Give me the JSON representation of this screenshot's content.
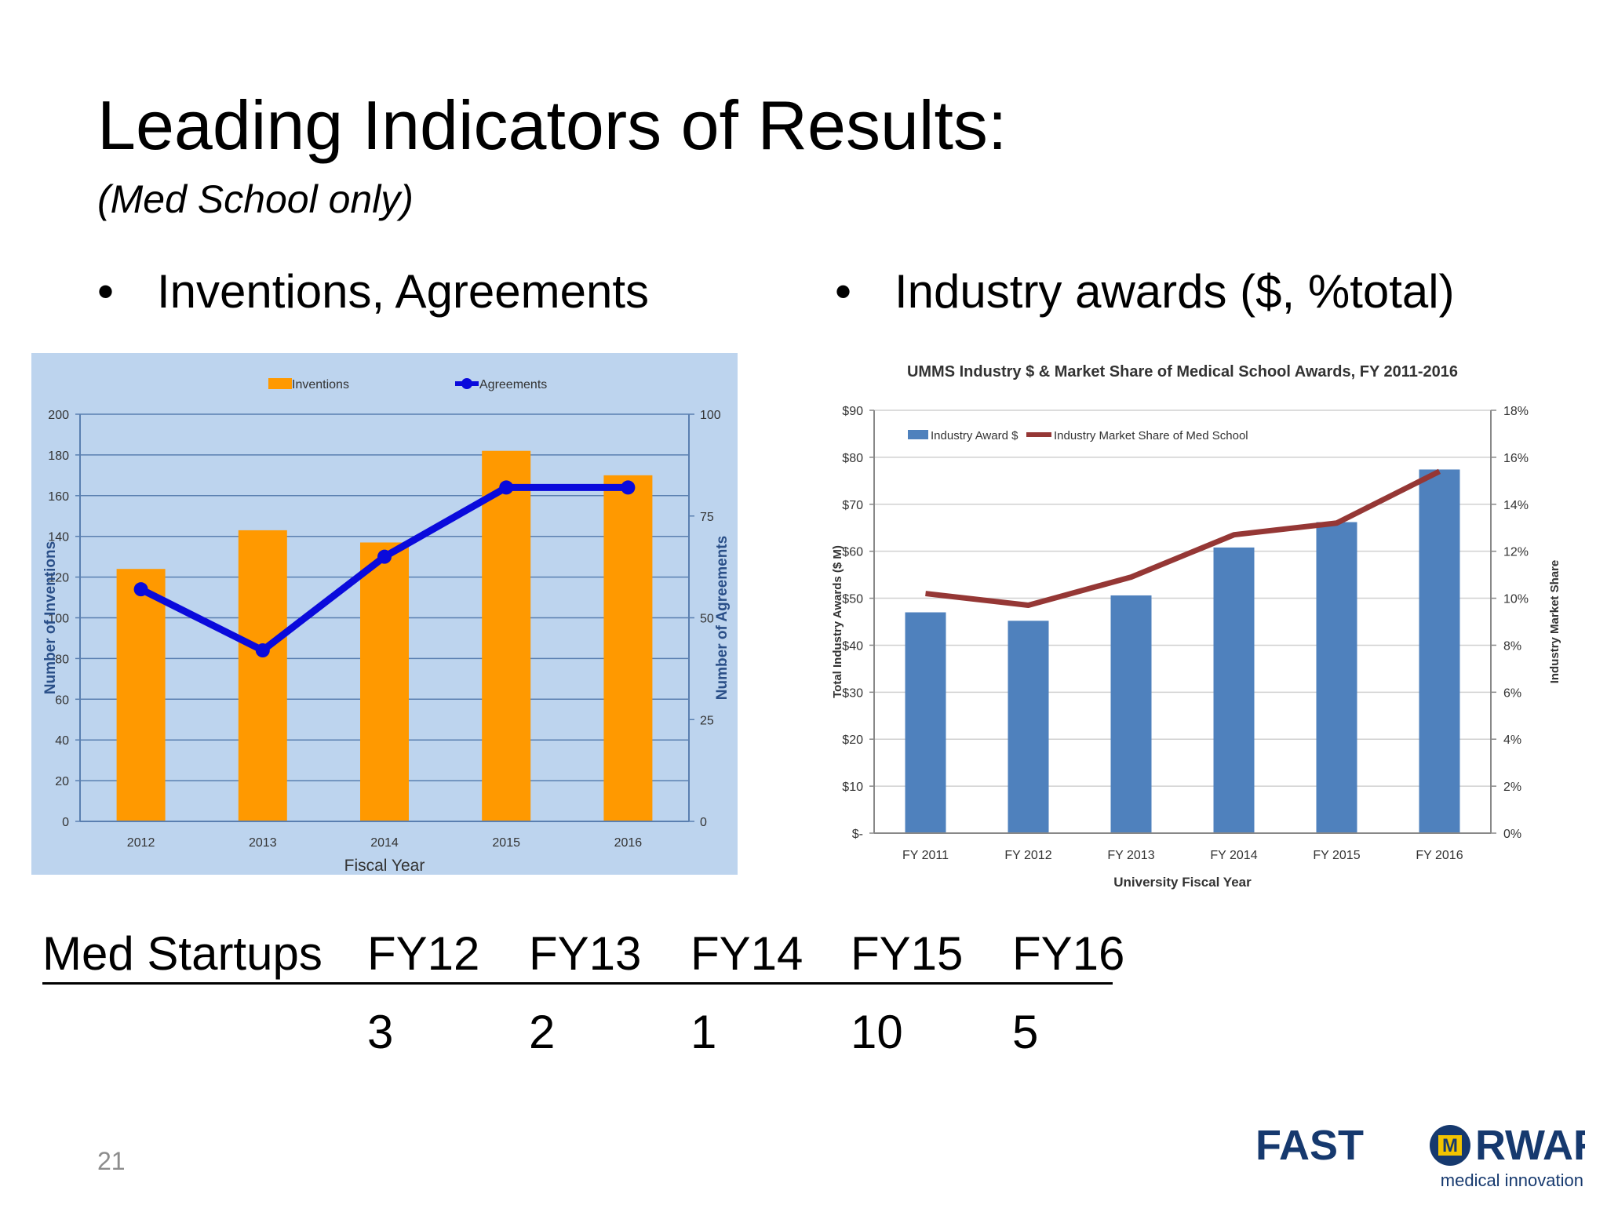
{
  "slide": {
    "title": "Leading Indicators of Results:",
    "subtitle": "(Med School only)",
    "bullet_glyph": "•",
    "bullets": [
      "Inventions, Agreements",
      "Industry awards ($, %total)"
    ],
    "page_number": "21"
  },
  "startups": {
    "label": "Med Startups",
    "years": [
      "FY12",
      "FY13",
      "FY14",
      "FY15",
      "FY16"
    ],
    "counts": [
      "3",
      "2",
      "1",
      "10",
      "5"
    ]
  },
  "logo": {
    "text_left": "FAST",
    "text_right": "RWARD",
    "letter_o": "O",
    "badge_letter": "M",
    "tagline": "medical innovation",
    "colors": {
      "navy": "#16396e",
      "maize": "#f2c400"
    }
  },
  "chart_data": [
    {
      "type": "bar",
      "title": "",
      "categories": [
        "2012",
        "2013",
        "2014",
        "2015",
        "2016"
      ],
      "xlabel": "Fiscal Year",
      "ylabel": "Number of Inventions",
      "y2label": "Number of Agreements",
      "ylim": [
        0,
        200
      ],
      "y2lim": [
        0,
        100
      ],
      "yticks": [
        "0",
        "20",
        "40",
        "60",
        "80",
        "100",
        "120",
        "140",
        "160",
        "180",
        "200"
      ],
      "y2ticks": [
        "0",
        "25",
        "50",
        "75",
        "100"
      ],
      "legend_position": "top",
      "grid": true,
      "series": [
        {
          "name": "Inventions",
          "type": "bar",
          "axis": "left",
          "color": "#ff9900",
          "values": [
            124,
            143,
            137,
            182,
            170
          ]
        },
        {
          "name": "Agreements",
          "type": "line",
          "axis": "right",
          "color": "#0a0adc",
          "values": [
            57,
            42,
            65,
            82,
            82
          ]
        }
      ],
      "background": "#bdd4ee"
    },
    {
      "type": "bar",
      "title": "UMMS Industry $ & Market Share of Medical School Awards, FY 2011-2016",
      "categories": [
        "FY 2011",
        "FY 2012",
        "FY 2013",
        "FY 2014",
        "FY 2015",
        "FY 2016"
      ],
      "xlabel": "University Fiscal Year",
      "ylabel": "Total Industry Awards ($ M)",
      "y2label": "Industry Market Share",
      "ylim": [
        0,
        90
      ],
      "y2lim": [
        0,
        18
      ],
      "yticks": [
        "$-",
        "$10",
        "$20",
        "$30",
        "$40",
        "$50",
        "$60",
        "$70",
        "$80",
        "$90"
      ],
      "y2ticks": [
        "0%",
        "2%",
        "4%",
        "6%",
        "8%",
        "10%",
        "12%",
        "14%",
        "16%",
        "18%"
      ],
      "legend_position": "top-left",
      "grid": true,
      "series": [
        {
          "name": "Industry Award $",
          "type": "bar",
          "axis": "left",
          "color": "#4f81bd",
          "values": [
            47,
            45.2,
            50.6,
            60.8,
            66.2,
            77.4
          ]
        },
        {
          "name": "Industry Market Share of Med School",
          "type": "line",
          "axis": "right",
          "color": "#953735",
          "values": [
            10.2,
            9.7,
            10.9,
            12.7,
            13.2,
            15.4
          ]
        }
      ]
    }
  ]
}
